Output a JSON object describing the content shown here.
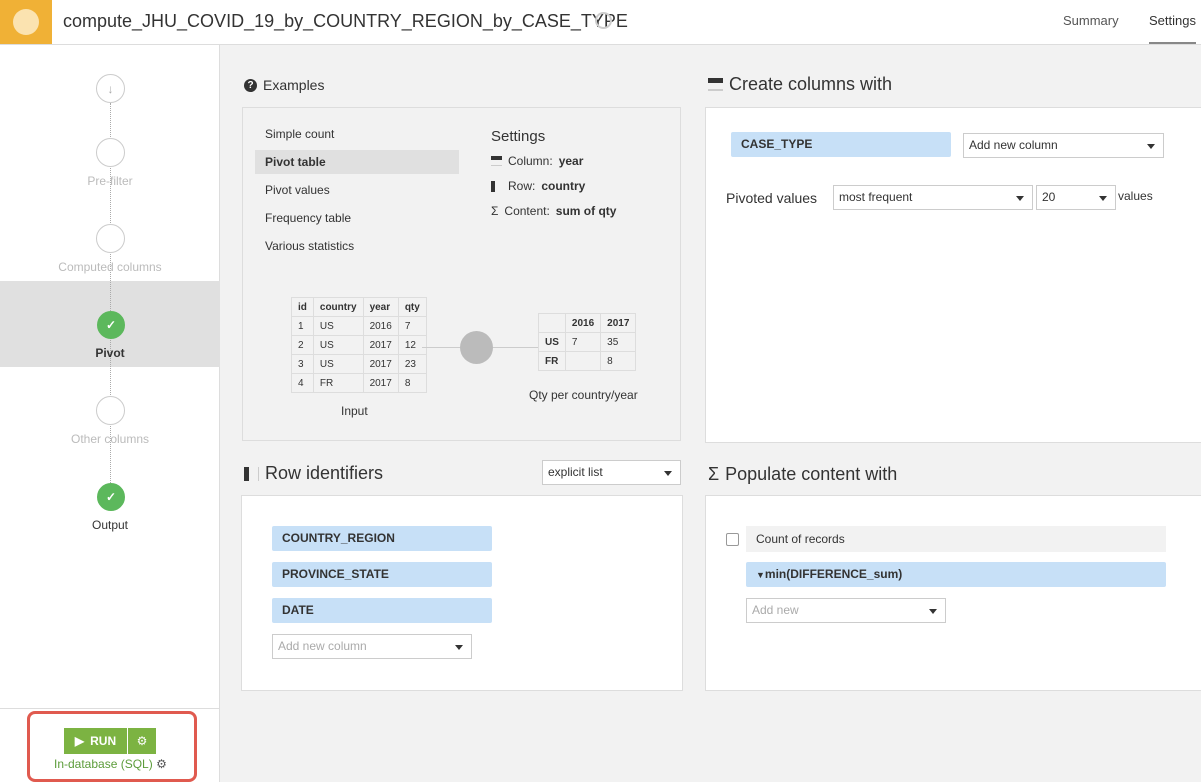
{
  "header": {
    "title": "compute_JHU_COVID_19_by_COUNTRY_REGION_by_CASE_TYPE",
    "tabs": [
      "Summary",
      "Settings"
    ],
    "active_tab": "Settings"
  },
  "sidebar": {
    "steps": [
      {
        "label": ""
      },
      {
        "label": "Pre-filter"
      },
      {
        "label": "Computed columns"
      },
      {
        "label": "Pivot",
        "active": true
      },
      {
        "label": "Other columns"
      },
      {
        "label": "Output"
      }
    ],
    "run_label": "RUN",
    "engine": "In-database (SQL)"
  },
  "examples": {
    "title": "Examples",
    "items": [
      "Simple count",
      "Pivot table",
      "Pivot values",
      "Frequency table",
      "Various statistics"
    ],
    "selected": "Pivot table",
    "settings_title": "Settings",
    "settings": [
      {
        "label": "Column:",
        "value": "year"
      },
      {
        "label": "Row:",
        "value": "country"
      },
      {
        "label": "Content:",
        "value": "sum of qty"
      }
    ],
    "input_table": {
      "headers": [
        "id",
        "country",
        "year",
        "qty"
      ],
      "rows": [
        [
          "1",
          "US",
          "2016",
          "7"
        ],
        [
          "2",
          "US",
          "2017",
          "12"
        ],
        [
          "3",
          "US",
          "2017",
          "23"
        ],
        [
          "4",
          "FR",
          "2017",
          "8"
        ]
      ],
      "caption": "Input"
    },
    "output_table": {
      "headers": [
        "",
        "2016",
        "2017"
      ],
      "rows": [
        [
          "US",
          "7",
          "35"
        ],
        [
          "FR",
          "",
          "8"
        ]
      ],
      "caption": "Qty per country/year"
    }
  },
  "create_columns": {
    "title": "Create columns with",
    "column": "CASE_TYPE",
    "add_select": "Add new column",
    "pivoted_label": "Pivoted values",
    "pivoted_mode": "most frequent",
    "pivoted_count": "20",
    "values_label": "values"
  },
  "row_identifiers": {
    "title": "Row identifiers",
    "mode": "explicit list",
    "columns": [
      "COUNTRY_REGION",
      "PROVINCE_STATE",
      "DATE"
    ],
    "add_placeholder": "Add new column"
  },
  "populate": {
    "title": "Populate content with",
    "count_label": "Count of records",
    "count_checked": false,
    "aggregations": [
      "min(DIFFERENCE_sum)"
    ],
    "add_placeholder": "Add new"
  },
  "colors": {
    "accent": "#f0b136",
    "green": "#7cb342",
    "pill": "#c7e0f7",
    "highlight": "#e05a4f"
  }
}
